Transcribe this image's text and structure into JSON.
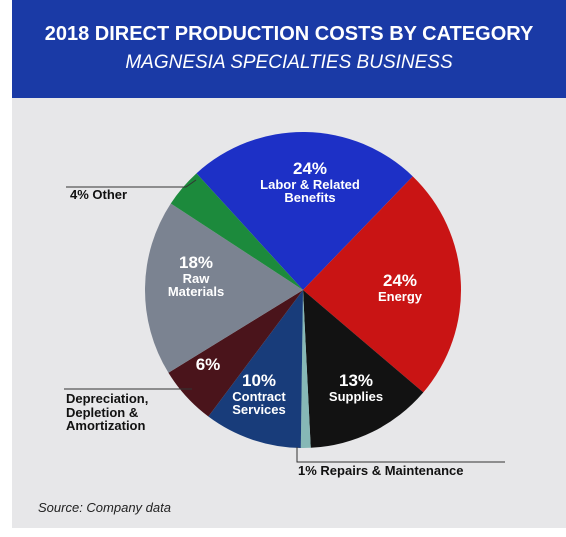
{
  "chart_data": {
    "type": "pie",
    "title": "2018 DIRECT PRODUCTION COSTS BY CATEGORY",
    "subtitle": "MAGNESIA SPECIALTIES BUSINESS",
    "source": "Source: Company data",
    "categories": [
      "Labor & Related Benefits",
      "Energy",
      "Supplies",
      "Repairs & Maintenance",
      "Contract Services",
      "Depreciation, Depletion & Amortization",
      "Raw Materials",
      "Other"
    ],
    "values": [
      24,
      24,
      13,
      1,
      10,
      6,
      18,
      4
    ],
    "value_labels": [
      "24%",
      "24%",
      "13%",
      "1%",
      "10%",
      "6%",
      "18%",
      "4%"
    ],
    "colors": [
      "#1d30c6",
      "#c91414",
      "#121212",
      "#86b8b6",
      "#183c7a",
      "#4a141b",
      "#7b8391",
      "#1c8a3c"
    ]
  }
}
